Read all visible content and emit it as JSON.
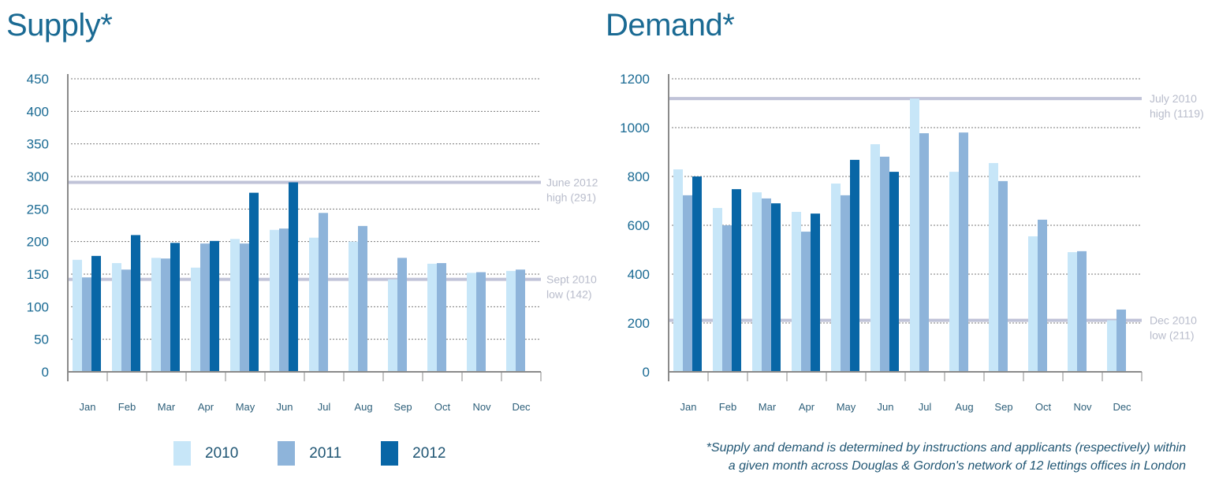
{
  "chart_data": [
    {
      "type": "bar",
      "title": "Supply*",
      "xlabel": "",
      "ylabel": "",
      "ylim": [
        0,
        450
      ],
      "yticks": [
        0,
        50,
        100,
        150,
        200,
        250,
        300,
        350,
        400,
        450
      ],
      "grid": true,
      "categories": [
        "Jan",
        "Feb",
        "Mar",
        "Apr",
        "May",
        "Jun",
        "Jul",
        "Aug",
        "Sep",
        "Oct",
        "Nov",
        "Dec"
      ],
      "series": [
        {
          "name": "2010",
          "values": [
            172,
            167,
            175,
            160,
            204,
            218,
            206,
            200,
            142,
            166,
            152,
            155
          ]
        },
        {
          "name": "2011",
          "values": [
            145,
            157,
            174,
            197,
            197,
            220,
            244,
            224,
            175,
            167,
            153,
            157
          ]
        },
        {
          "name": "2012",
          "values": [
            178,
            210,
            198,
            201,
            275,
            291,
            null,
            null,
            null,
            null,
            null,
            null
          ]
        }
      ],
      "reference_lines": [
        {
          "value": 291,
          "label_line1": "June 2012",
          "label_line2": "high (291)"
        },
        {
          "value": 142,
          "label_line1": "Sept 2010",
          "label_line2": "low (142)"
        }
      ]
    },
    {
      "type": "bar",
      "title": "Demand*",
      "xlabel": "",
      "ylabel": "",
      "ylim": [
        0,
        1200
      ],
      "yticks": [
        0,
        200,
        400,
        600,
        800,
        1000,
        1200
      ],
      "grid": true,
      "categories": [
        "Jan",
        "Feb",
        "Mar",
        "Apr",
        "May",
        "Jun",
        "Jul",
        "Aug",
        "Sep",
        "Oct",
        "Nov",
        "Dec"
      ],
      "series": [
        {
          "name": "2010",
          "values": [
            829,
            671,
            735,
            655,
            771,
            932,
            1119,
            819,
            855,
            555,
            490,
            211
          ]
        },
        {
          "name": "2011",
          "values": [
            723,
            600,
            710,
            574,
            723,
            881,
            977,
            980,
            781,
            623,
            494,
            255
          ]
        },
        {
          "name": "2012",
          "values": [
            800,
            748,
            690,
            648,
            868,
            819,
            null,
            null,
            null,
            null,
            null,
            null
          ]
        }
      ],
      "reference_lines": [
        {
          "value": 1119,
          "label_line1": "July 2010",
          "label_line2": "high (1119)"
        },
        {
          "value": 211,
          "label_line1": "Dec 2010",
          "label_line2": "low (211)"
        }
      ]
    }
  ],
  "colors": {
    "2010": "#c7e6f8",
    "2011": "#8eb4da",
    "2012": "#0866a6",
    "title": "#1a6a93",
    "reference_line": "#c0c3d8",
    "reference_label": "#b8bccb",
    "grid": "#7a7a7a",
    "axis": "#8a8a8a"
  },
  "legend": [
    {
      "label": "2010",
      "color": "#c7e6f8"
    },
    {
      "label": "2011",
      "color": "#8eb4da"
    },
    {
      "label": "2012",
      "color": "#0866a6"
    }
  ],
  "footnote": {
    "line1": "*Supply and demand is determined by instructions and applicants (respectively) within",
    "line2": "a given month across Douglas & Gordon's network of 12 lettings offices in London"
  }
}
